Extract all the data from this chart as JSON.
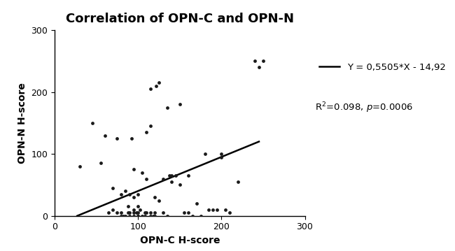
{
  "title": "Correlation of OPN-C and OPN-N",
  "xlabel": "OPN-C H-score",
  "ylabel": "OPN-N H-score",
  "xlim": [
    0,
    300
  ],
  "ylim": [
    0,
    300
  ],
  "xticks": [
    0,
    100,
    200,
    300
  ],
  "yticks": [
    0,
    100,
    200,
    300
  ],
  "slope": 0.5505,
  "intercept": -14.92,
  "line_x_start": 27.1,
  "line_x_end": 245,
  "equation_text": "Y = 0,5505*X - 14,92",
  "r2_line": "R$^2$=0.098, $p$=0.0006",
  "scatter_x": [
    30,
    45,
    55,
    60,
    65,
    70,
    70,
    75,
    75,
    80,
    80,
    80,
    82,
    85,
    85,
    88,
    88,
    90,
    90,
    90,
    92,
    95,
    95,
    95,
    95,
    95,
    98,
    100,
    100,
    100,
    100,
    100,
    102,
    105,
    105,
    108,
    108,
    110,
    110,
    110,
    115,
    115,
    115,
    115,
    118,
    120,
    120,
    120,
    122,
    125,
    125,
    130,
    130,
    135,
    135,
    138,
    140,
    140,
    145,
    150,
    150,
    155,
    160,
    160,
    165,
    170,
    175,
    180,
    185,
    190,
    195,
    200,
    200,
    205,
    210,
    220,
    240,
    245,
    250
  ],
  "scatter_y": [
    80,
    150,
    85,
    130,
    5,
    10,
    45,
    5,
    125,
    0,
    5,
    35,
    0,
    40,
    0,
    5,
    15,
    0,
    5,
    35,
    125,
    5,
    0,
    10,
    30,
    75,
    5,
    0,
    0,
    5,
    15,
    35,
    10,
    0,
    70,
    0,
    5,
    5,
    60,
    135,
    0,
    5,
    205,
    145,
    0,
    0,
    5,
    30,
    210,
    215,
    25,
    5,
    60,
    175,
    0,
    65,
    55,
    65,
    65,
    50,
    180,
    5,
    5,
    65,
    0,
    20,
    0,
    100,
    10,
    10,
    10,
    95,
    100,
    10,
    5,
    55,
    250,
    240,
    250
  ],
  "dot_color": "#1a1a1a",
  "dot_size": 12,
  "line_color": "#000000",
  "line_width": 1.8,
  "background_color": "#ffffff",
  "title_fontsize": 13,
  "label_fontsize": 10,
  "tick_fontsize": 9,
  "legend_fontsize": 9.5
}
